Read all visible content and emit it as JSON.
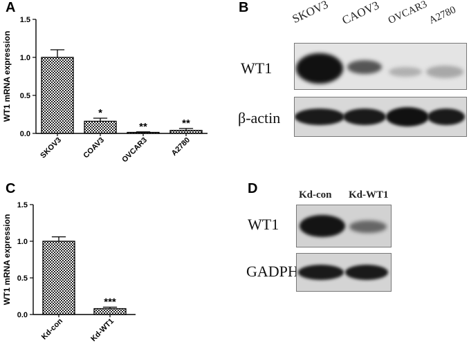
{
  "panels": {
    "a": {
      "label": "A"
    },
    "b": {
      "label": "B"
    },
    "c": {
      "label": "C"
    },
    "d": {
      "label": "D"
    }
  },
  "chart_data": [
    {
      "type": "bar",
      "categories": [
        "SKOV3",
        "COAV3",
        "OVCAR3",
        "A2780"
      ],
      "values": [
        1.0,
        0.16,
        0.01,
        0.04
      ],
      "errors": [
        0.1,
        0.04,
        0.01,
        0.025
      ],
      "annotations": [
        "",
        "*",
        "**",
        "**"
      ],
      "ylabel": "WT1 mRNA expression",
      "xlabel": "",
      "ylim": [
        0,
        1.5
      ],
      "yticks": [
        "0.0",
        "0.5",
        "1.0",
        "1.5"
      ],
      "grid": false,
      "fill": "checkered"
    },
    {
      "type": "bar",
      "categories": [
        "Kd-con",
        "Kd-WT1"
      ],
      "values": [
        1.0,
        0.08
      ],
      "errors": [
        0.06,
        0.02
      ],
      "annotations": [
        "",
        "***"
      ],
      "ylabel": "WT1 mRNA expression",
      "xlabel": "",
      "ylim": [
        0,
        1.5
      ],
      "yticks": [
        "0.0",
        "0.5",
        "1.0",
        "1.5"
      ],
      "grid": false,
      "fill": "checkered"
    }
  ],
  "blot_b": {
    "lanes": [
      "SKOV3",
      "CAOV3",
      "OVCAR3",
      "A2780"
    ],
    "rows": [
      "WT1",
      "β-actin"
    ]
  },
  "blot_d": {
    "lanes": [
      "Kd-con",
      "Kd-WT1"
    ],
    "rows": [
      "WT1",
      "GADPH"
    ]
  }
}
